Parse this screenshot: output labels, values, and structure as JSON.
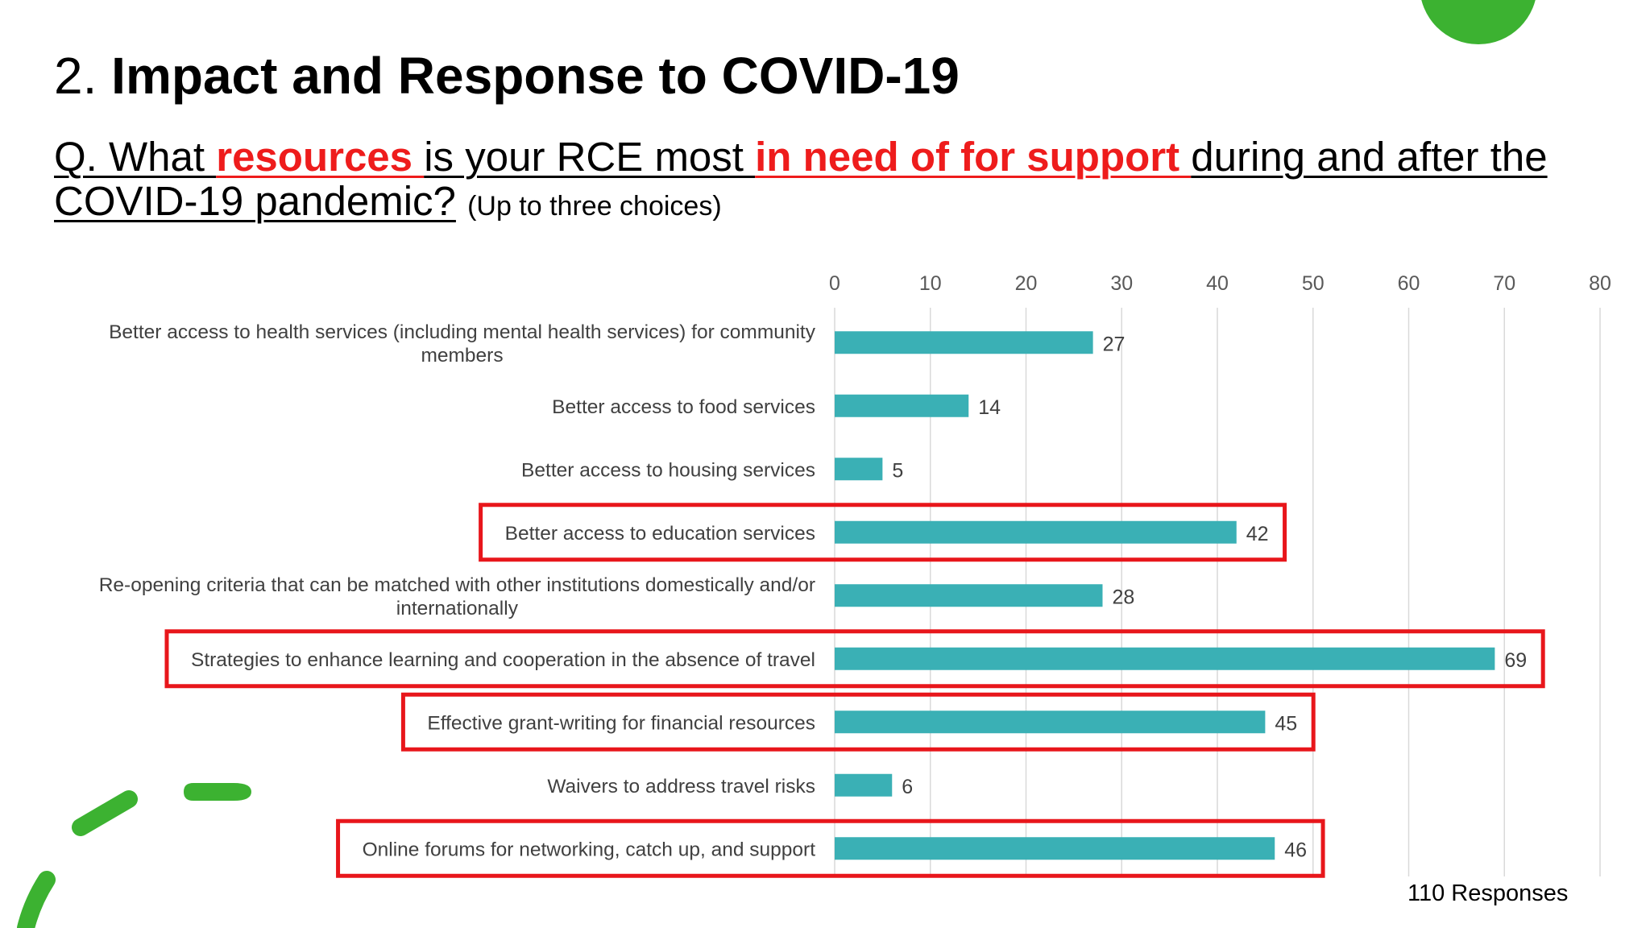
{
  "slide": {
    "title_number": "2.",
    "title_text": "Impact and Response to COVID-19",
    "question": {
      "p1": "Q. What ",
      "p2": "resources ",
      "p3": "is your RCE most ",
      "p4": "in need of for support ",
      "p5": "during and after the COVID-19 pandemic?",
      "note": "(Up to three choices)"
    },
    "responses_note": "110 Responses"
  },
  "colors": {
    "bar": "#3ab0b5",
    "highlight_box": "#e8161b",
    "emphasis_text": "#ee1c1c",
    "decoration": "#3cb231",
    "grid": "#d9d9d9"
  },
  "chart_data": {
    "type": "bar",
    "orientation": "horizontal",
    "title": "",
    "xlabel": "",
    "ylabel": "",
    "xlim": [
      0,
      80
    ],
    "ticks": [
      0,
      10,
      20,
      30,
      40,
      50,
      60,
      70,
      80
    ],
    "axis_position": "top",
    "grid": true,
    "categories": [
      [
        "Better access to health services (including mental health services) for community",
        "members"
      ],
      [
        "Better access to food services"
      ],
      [
        "Better access to housing services"
      ],
      [
        "Better access to education services"
      ],
      [
        "Re-opening criteria that can be matched with other institutions domestically and/or",
        "internationally"
      ],
      [
        "Strategies to enhance learning and cooperation in the absence of travel"
      ],
      [
        "Effective grant-writing for financial resources"
      ],
      [
        "Waivers to address travel risks"
      ],
      [
        "Online forums for networking, catch up, and support"
      ]
    ],
    "values": [
      27,
      14,
      5,
      42,
      28,
      69,
      45,
      6,
      46
    ],
    "highlighted": [
      false,
      false,
      false,
      true,
      false,
      true,
      true,
      false,
      true
    ]
  }
}
